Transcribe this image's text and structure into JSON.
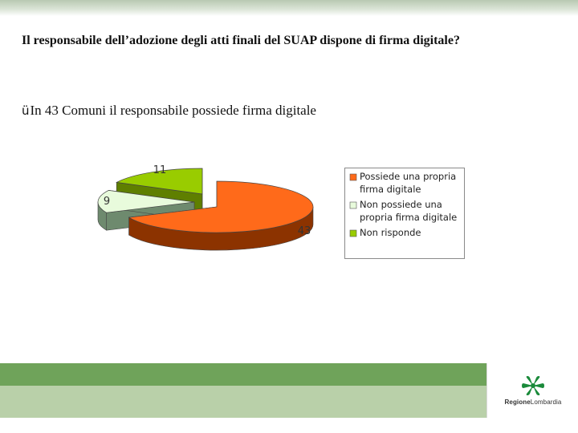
{
  "slide": {
    "question": "Il responsabile dell’adozione degli atti finali del SUAP dispone di firma digitale?",
    "bullet_check": "ü",
    "bullet_text": "In 43 Comuni il responsabile possiede firma digitale"
  },
  "chart_data": {
    "type": "pie",
    "variant": "3d-exploded",
    "categories": [
      "Possiede una propria firma digitale",
      "Non possiede una propria firma digitale",
      "Non risponde"
    ],
    "values": [
      43,
      9,
      11
    ],
    "colors": [
      "#ff6a1a",
      "#e8fbdc",
      "#99cc00"
    ],
    "side_colors": [
      "#8c3300",
      "#6e8a6e",
      "#5f7f00"
    ],
    "data_labels": [
      "43",
      "9",
      "11"
    ],
    "legend": {
      "placement": "right",
      "entries": [
        {
          "lines": [
            "Possiede una propria",
            "firma digitale"
          ],
          "color": "#ff6a1a"
        },
        {
          "lines": [
            "Non possiede una",
            "propria firma digitale"
          ],
          "color": "#e8fbdc"
        },
        {
          "lines": [
            "Non risponde"
          ],
          "color": "#99cc00"
        }
      ]
    }
  },
  "footer": {
    "logo_icon": "regione-lombardia-rose-icon",
    "brand_regione": "Regione",
    "brand_lombardia": "Lombardia",
    "band_colors": [
      "#6fa35a",
      "#b9d0a9"
    ]
  }
}
